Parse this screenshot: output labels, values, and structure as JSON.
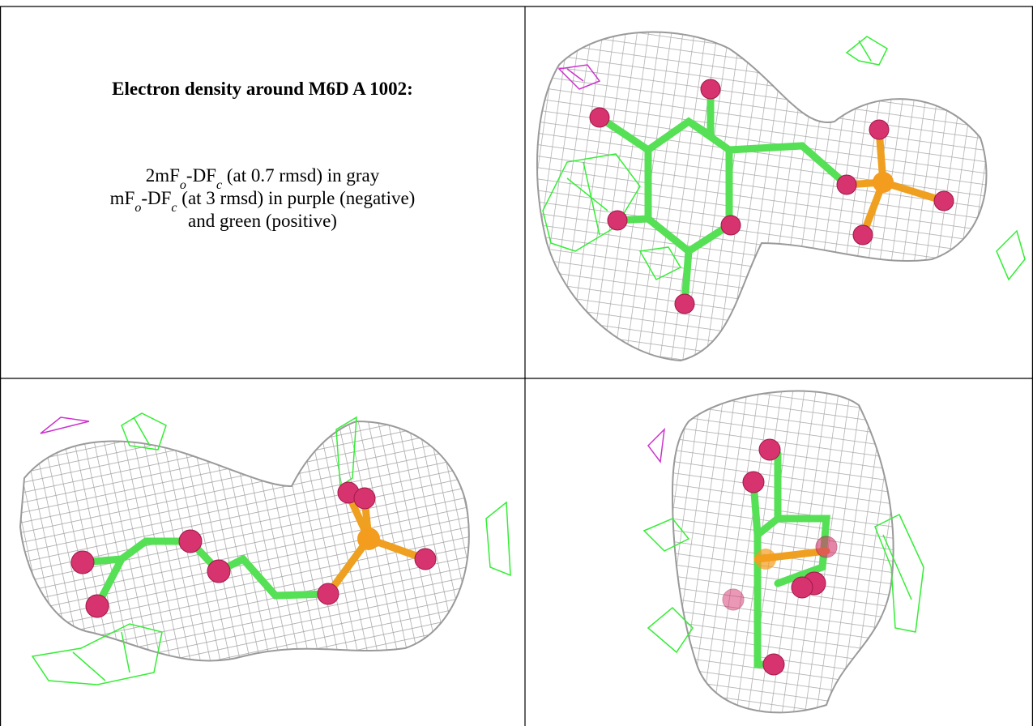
{
  "title": "Electron density around M6D A 1002:",
  "legend": {
    "line1": [
      "2mF",
      "o",
      "-DF",
      "c",
      " (at 0.7 rmsd) in gray"
    ],
    "line2": [
      "mF",
      "o",
      "-DF",
      "c",
      " (at 3 rmsd) in purple (negative)"
    ],
    "line3": [
      "and green (positive)"
    ]
  }
}
